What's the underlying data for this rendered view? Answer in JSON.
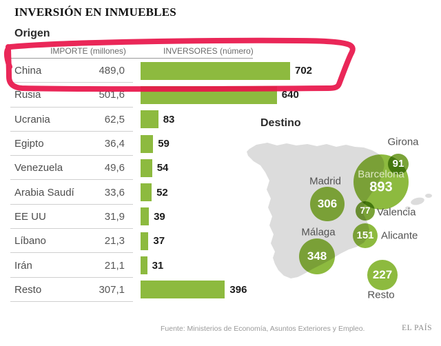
{
  "title": "INVERSIÓN EN INMUEBLES",
  "colors": {
    "bar": "#8dba3f",
    "bubble": "#8dba3f",
    "bubble-dark": "#7aa338",
    "map": "#dcdcdc",
    "annotation": "#e8174b"
  },
  "origin": {
    "label": "Origen",
    "col_importe": "IMPORTE (millones)",
    "col_inversores": "INVERSORES (número)",
    "rows": [
      {
        "country": "China",
        "importe": "489,0",
        "inversores": 702
      },
      {
        "country": "Rusia",
        "importe": "501,6",
        "inversores": 640
      },
      {
        "country": "Ucrania",
        "importe": "62,5",
        "inversores": 83
      },
      {
        "country": "Egipto",
        "importe": "36,4",
        "inversores": 59
      },
      {
        "country": "Venezuela",
        "importe": "49,6",
        "inversores": 54
      },
      {
        "country": "Arabia Saudí",
        "importe": "33,6",
        "inversores": 52
      },
      {
        "country": "EE UU",
        "importe": "31,9",
        "inversores": 39
      },
      {
        "country": "Líbano",
        "importe": "21,3",
        "inversores": 37
      },
      {
        "country": "Irán",
        "importe": "21,1",
        "inversores": 31
      },
      {
        "country": "Resto",
        "importe": "307,1",
        "inversores": 396
      }
    ]
  },
  "destination": {
    "label": "Destino",
    "bubbles": [
      {
        "city": "Girona",
        "value": 91
      },
      {
        "city": "Barcelona",
        "value": 893
      },
      {
        "city": "Madrid",
        "value": 306
      },
      {
        "city": "Valencia",
        "value": 77
      },
      {
        "city": "Alicante",
        "value": 151
      },
      {
        "city": "Málaga",
        "value": 348
      },
      {
        "city": "Resto",
        "value": 227
      }
    ]
  },
  "footer": {
    "source": "Fuente: Ministerios de Economía, Asuntos Exteriores y Empleo.",
    "brand": "EL PAÍS"
  },
  "chart_data": [
    {
      "type": "bar",
      "orientation": "horizontal",
      "title": "Origen",
      "categories": [
        "China",
        "Rusia",
        "Ucrania",
        "Egipto",
        "Venezuela",
        "Arabia Saudí",
        "EE UU",
        "Líbano",
        "Irán",
        "Resto"
      ],
      "series": [
        {
          "name": "IMPORTE (millones)",
          "values": [
            489.0,
            501.6,
            62.5,
            36.4,
            49.6,
            33.6,
            31.9,
            21.3,
            21.1,
            307.1
          ]
        },
        {
          "name": "INVERSORES (número)",
          "values": [
            702,
            640,
            83,
            59,
            54,
            52,
            39,
            37,
            31,
            396
          ]
        }
      ],
      "xlabel": "",
      "ylabel": "",
      "xlim": [
        0,
        702
      ],
      "notes": "Bars drawn only for INVERSORES; IMPORTE shown as a numeric column. China row circled in red marker."
    },
    {
      "type": "bubble",
      "title": "Destino",
      "categories": [
        "Girona",
        "Barcelona",
        "Madrid",
        "Valencia",
        "Alicante",
        "Málaga",
        "Resto"
      ],
      "values": [
        91,
        893,
        306,
        77,
        151,
        348,
        227
      ],
      "notes": "Bubbles sized by number of investors, placed over a gray map of Spain."
    }
  ]
}
